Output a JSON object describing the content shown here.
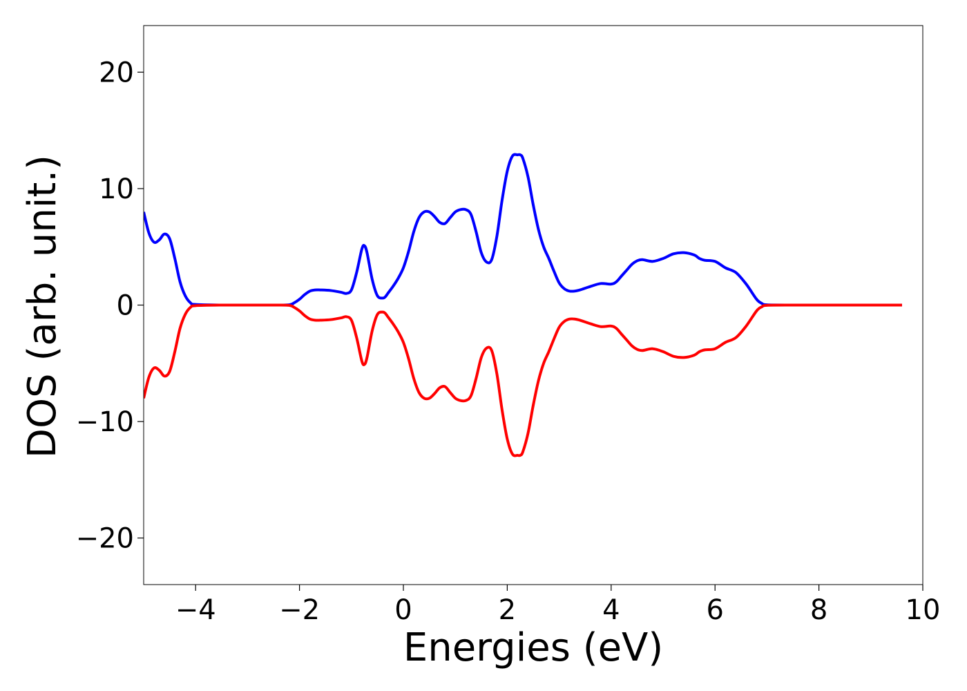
{
  "chart_data": {
    "type": "line",
    "title": "",
    "xlabel": "Energies (eV)",
    "ylabel": "DOS (arb. unit.)",
    "xlim": [
      -5,
      10
    ],
    "ylim": [
      -24,
      24
    ],
    "xticks": [
      -4,
      -2,
      0,
      2,
      4,
      6,
      8,
      10
    ],
    "yticks": [
      -20,
      -10,
      0,
      10,
      20
    ],
    "grid": false,
    "legend": "none",
    "series": [
      {
        "color": "#0000ff",
        "x": [
          -5.0,
          -4.9,
          -4.8,
          -4.7,
          -4.6,
          -4.5,
          -4.4,
          -4.3,
          -4.2,
          -4.1,
          -4.0,
          -3.5,
          -3.0,
          -2.5,
          -2.2,
          -2.1,
          -2.0,
          -1.9,
          -1.8,
          -1.7,
          -1.6,
          -1.4,
          -1.2,
          -1.1,
          -1.0,
          -0.9,
          -0.8,
          -0.75,
          -0.7,
          -0.6,
          -0.5,
          -0.4,
          -0.35,
          -0.3,
          -0.2,
          -0.1,
          0.0,
          0.1,
          0.2,
          0.3,
          0.4,
          0.5,
          0.6,
          0.7,
          0.8,
          0.9,
          1.0,
          1.1,
          1.2,
          1.3,
          1.4,
          1.5,
          1.6,
          1.7,
          1.8,
          1.9,
          2.0,
          2.1,
          2.2,
          2.25,
          2.3,
          2.4,
          2.5,
          2.6,
          2.7,
          2.8,
          2.9,
          3.0,
          3.1,
          3.2,
          3.3,
          3.4,
          3.6,
          3.8,
          4.0,
          4.1,
          4.2,
          4.3,
          4.4,
          4.5,
          4.6,
          4.8,
          5.0,
          5.2,
          5.4,
          5.6,
          5.7,
          5.8,
          6.0,
          6.2,
          6.4,
          6.6,
          6.8,
          6.9,
          7.0,
          7.5,
          8.0,
          9.0,
          9.6
        ],
        "y": [
          8.0,
          6.2,
          5.4,
          5.6,
          6.1,
          5.7,
          4.0,
          2.0,
          0.8,
          0.2,
          0.05,
          0.0,
          0.0,
          0.0,
          0.02,
          0.2,
          0.5,
          0.9,
          1.2,
          1.3,
          1.3,
          1.25,
          1.1,
          1.0,
          1.3,
          2.8,
          4.8,
          5.1,
          4.5,
          2.2,
          0.8,
          0.6,
          0.7,
          1.0,
          1.6,
          2.3,
          3.2,
          4.6,
          6.3,
          7.5,
          8.0,
          8.0,
          7.6,
          7.1,
          7.0,
          7.5,
          8.0,
          8.2,
          8.2,
          7.8,
          6.3,
          4.5,
          3.7,
          3.9,
          5.9,
          9.0,
          11.5,
          12.8,
          12.9,
          12.9,
          12.6,
          11.0,
          8.6,
          6.5,
          5.0,
          4.0,
          2.9,
          1.9,
          1.4,
          1.2,
          1.2,
          1.3,
          1.6,
          1.85,
          1.8,
          2.0,
          2.5,
          3.0,
          3.5,
          3.8,
          3.9,
          3.75,
          4.0,
          4.4,
          4.5,
          4.3,
          4.0,
          3.85,
          3.75,
          3.2,
          2.8,
          1.8,
          0.5,
          0.15,
          0.02,
          0.0,
          0.0,
          0.0,
          0.0
        ]
      },
      {
        "color": "#ff0000",
        "x": [
          -5.0,
          -4.9,
          -4.8,
          -4.7,
          -4.6,
          -4.5,
          -4.4,
          -4.3,
          -4.2,
          -4.1,
          -4.0,
          -3.5,
          -3.0,
          -2.5,
          -2.2,
          -2.1,
          -2.0,
          -1.9,
          -1.8,
          -1.7,
          -1.6,
          -1.4,
          -1.2,
          -1.1,
          -1.0,
          -0.9,
          -0.8,
          -0.75,
          -0.7,
          -0.6,
          -0.5,
          -0.4,
          -0.35,
          -0.3,
          -0.2,
          -0.1,
          0.0,
          0.1,
          0.2,
          0.3,
          0.4,
          0.5,
          0.6,
          0.7,
          0.8,
          0.9,
          1.0,
          1.1,
          1.2,
          1.3,
          1.4,
          1.5,
          1.6,
          1.7,
          1.8,
          1.9,
          2.0,
          2.1,
          2.2,
          2.25,
          2.3,
          2.4,
          2.5,
          2.6,
          2.7,
          2.8,
          2.9,
          3.0,
          3.1,
          3.2,
          3.3,
          3.4,
          3.6,
          3.8,
          4.0,
          4.1,
          4.2,
          4.3,
          4.4,
          4.5,
          4.6,
          4.8,
          5.0,
          5.2,
          5.4,
          5.6,
          5.7,
          5.8,
          6.0,
          6.2,
          6.4,
          6.6,
          6.8,
          6.9,
          7.0,
          7.5,
          8.0,
          9.0,
          9.6
        ],
        "y": [
          -8.0,
          -6.2,
          -5.4,
          -5.6,
          -6.1,
          -5.7,
          -4.0,
          -2.0,
          -0.8,
          -0.2,
          -0.05,
          0.0,
          0.0,
          0.0,
          -0.02,
          -0.2,
          -0.5,
          -0.9,
          -1.2,
          -1.3,
          -1.3,
          -1.25,
          -1.1,
          -1.0,
          -1.3,
          -2.8,
          -4.8,
          -5.1,
          -4.5,
          -2.2,
          -0.8,
          -0.6,
          -0.7,
          -1.0,
          -1.6,
          -2.3,
          -3.2,
          -4.6,
          -6.3,
          -7.5,
          -8.0,
          -8.0,
          -7.6,
          -7.1,
          -7.0,
          -7.5,
          -8.0,
          -8.2,
          -8.2,
          -7.8,
          -6.3,
          -4.5,
          -3.7,
          -3.9,
          -5.9,
          -9.0,
          -11.5,
          -12.8,
          -12.9,
          -12.9,
          -12.6,
          -11.0,
          -8.6,
          -6.5,
          -5.0,
          -4.0,
          -2.9,
          -1.9,
          -1.4,
          -1.2,
          -1.2,
          -1.3,
          -1.6,
          -1.85,
          -1.8,
          -2.0,
          -2.5,
          -3.0,
          -3.5,
          -3.8,
          -3.9,
          -3.75,
          -4.0,
          -4.4,
          -4.5,
          -4.3,
          -4.0,
          -3.85,
          -3.75,
          -3.2,
          -2.8,
          -1.8,
          -0.5,
          -0.15,
          -0.02,
          0.0,
          0.0,
          0.0,
          0.0
        ]
      }
    ]
  }
}
